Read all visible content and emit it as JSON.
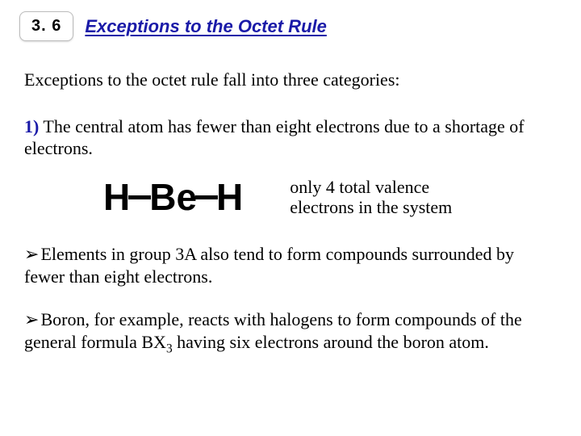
{
  "header": {
    "section_number": "3. 6",
    "section_title": "Exceptions to the Octet Rule"
  },
  "intro_text": "Exceptions to the octet rule fall into three categories:",
  "category1": {
    "number": "1)",
    "text_part1": " The central atom has fewer than eight electrons due to a shortage of electrons."
  },
  "formula": {
    "atom1": "H",
    "atom2": "Be",
    "atom3": "H",
    "note": "only 4 total valence electrons in the system"
  },
  "bullet1": {
    "marker": "➢",
    "text": "Elements in group 3A also tend to form compounds surrounded by fewer than eight electrons."
  },
  "bullet2": {
    "marker": "➢",
    "text_before_sub": "Boron, for example, reacts with halogens to form compounds of the general formula BX",
    "sub": "3",
    "text_after_sub": " having six electrons around the boron atom."
  },
  "colors": {
    "accent": "#1a1aa8",
    "text": "#000000",
    "background": "#ffffff",
    "badge_border": "#bcbcbc"
  }
}
